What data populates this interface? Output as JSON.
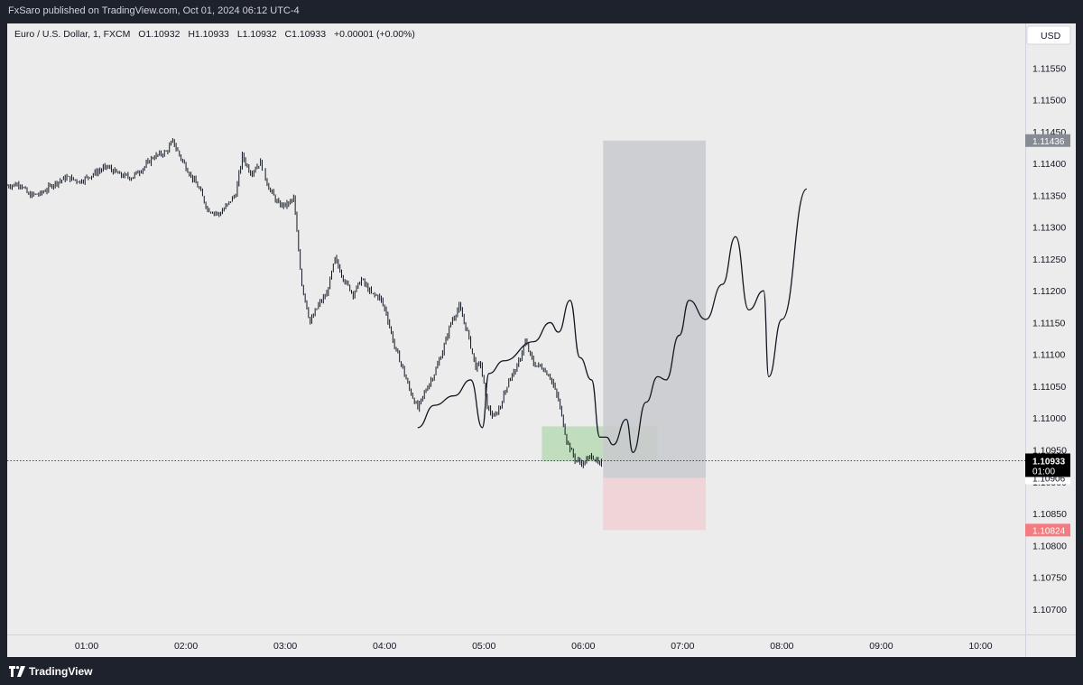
{
  "publish_line": "FxSaro published on TradingView.com, Oct 01, 2024 06:12 UTC-4",
  "brand": "TradingView",
  "colors": {
    "background": "#ececec",
    "candle": "#131722",
    "target_zone": "#c9cacf",
    "stop_zone": "#f0d2d6",
    "entry_zone": "#b9dbb5",
    "target_label": "#878b94",
    "stop_label": "#f47c80"
  },
  "chart_data": {
    "type": "line",
    "symbol": "Euro / U.S. Dollar, 1, FXCM",
    "legend": {
      "open": "O1.10932",
      "high": "H1.10933",
      "low": "L1.10932",
      "close": "C1.10933",
      "change": "+0.00001 (+0.00%)"
    },
    "currency": "USD",
    "x_ticks": [
      "01:00",
      "02:00",
      "03:00",
      "04:00",
      "05:00",
      "06:00",
      "07:00",
      "08:00",
      "09:00",
      "10:00"
    ],
    "y_ticks": [
      1.1155,
      1.115,
      1.1145,
      1.114,
      1.1135,
      1.113,
      1.1125,
      1.112,
      1.1115,
      1.111,
      1.1105,
      1.11,
      1.1095,
      1.109,
      1.1085,
      1.108,
      1.1075,
      1.107
    ],
    "y_tick_labels": [
      "1.11550",
      "1.11500",
      "1.11450",
      "1.11400",
      "1.11350",
      "1.11300",
      "1.11250",
      "1.11200",
      "1.11150",
      "1.11100",
      "1.11050",
      "1.11000",
      "1.10950",
      "1.10900",
      "1.10850",
      "1.10800",
      "1.10750",
      "1.10700"
    ],
    "ylim": [
      1.1066,
      1.1162
    ],
    "xlim": [
      "00:12",
      "10:27"
    ],
    "price_series": [
      [
        "00:12",
        1.11365
      ],
      [
        "00:20",
        1.11368
      ],
      [
        "00:25",
        1.1135
      ],
      [
        "00:32",
        1.11352
      ],
      [
        "00:40",
        1.11368
      ],
      [
        "00:48",
        1.11378
      ],
      [
        "00:56",
        1.11372
      ],
      [
        "01:05",
        1.11385
      ],
      [
        "01:12",
        1.11395
      ],
      [
        "01:20",
        1.11382
      ],
      [
        "01:27",
        1.11378
      ],
      [
        "01:35",
        1.11395
      ],
      [
        "01:40",
        1.1141
      ],
      [
        "01:48",
        1.11418
      ],
      [
        "01:52",
        1.11435
      ],
      [
        "01:57",
        1.11408
      ],
      [
        "02:02",
        1.11385
      ],
      [
        "02:08",
        1.1136
      ],
      [
        "02:13",
        1.11328
      ],
      [
        "02:20",
        1.1132
      ],
      [
        "02:25",
        1.11335
      ],
      [
        "02:30",
        1.11352
      ],
      [
        "02:34",
        1.11412
      ],
      [
        "02:39",
        1.11385
      ],
      [
        "02:45",
        1.11402
      ],
      [
        "02:50",
        1.11362
      ],
      [
        "02:56",
        1.11335
      ],
      [
        "03:01",
        1.11335
      ],
      [
        "03:05",
        1.11345
      ],
      [
        "03:10",
        1.1121
      ],
      [
        "03:15",
        1.1115
      ],
      [
        "03:20",
        1.11178
      ],
      [
        "03:25",
        1.11195
      ],
      [
        "03:30",
        1.1125
      ],
      [
        "03:36",
        1.11215
      ],
      [
        "03:41",
        1.11195
      ],
      [
        "03:46",
        1.11218
      ],
      [
        "03:52",
        1.11195
      ],
      [
        "03:57",
        1.1119
      ],
      [
        "04:01",
        1.11165
      ],
      [
        "04:06",
        1.11112
      ],
      [
        "04:10",
        1.11085
      ],
      [
        "04:15",
        1.11045
      ],
      [
        "04:20",
        1.11015
      ],
      [
        "04:25",
        1.11045
      ],
      [
        "04:30",
        1.1107
      ],
      [
        "04:35",
        1.11105
      ],
      [
        "04:40",
        1.1115
      ],
      [
        "04:45",
        1.11175
      ],
      [
        "04:50",
        1.11135
      ],
      [
        "04:55",
        1.1108
      ],
      [
        "04:58",
        1.11085
      ],
      [
        "05:02",
        1.11018
      ],
      [
        "05:06",
        1.11
      ],
      [
        "05:10",
        1.1102
      ],
      [
        "05:15",
        1.1106
      ],
      [
        "05:20",
        1.1108
      ],
      [
        "05:25",
        1.1112
      ],
      [
        "05:30",
        1.11085
      ],
      [
        "05:35",
        1.1108
      ],
      [
        "05:40",
        1.11065
      ],
      [
        "05:45",
        1.11028
      ],
      [
        "05:50",
        1.10965
      ],
      [
        "05:55",
        1.10935
      ],
      [
        "06:00",
        1.10928
      ],
      [
        "06:05",
        1.10942
      ],
      [
        "06:10",
        1.10925
      ],
      [
        "06:12",
        1.10933
      ]
    ],
    "drawn_projection_path": [
      [
        "04:20",
        1.10985
      ],
      [
        "04:30",
        1.1102
      ],
      [
        "04:42",
        1.11035
      ],
      [
        "04:52",
        1.1106
      ],
      [
        "04:59",
        1.10985
      ],
      [
        "05:03",
        1.1107
      ],
      [
        "05:12",
        1.1109
      ],
      [
        "05:30",
        1.1112
      ],
      [
        "05:40",
        1.1115
      ],
      [
        "05:45",
        1.11135
      ],
      [
        "05:52",
        1.11185
      ],
      [
        "05:58",
        1.11095
      ],
      [
        "06:05",
        1.1106
      ],
      [
        "06:10",
        1.1097
      ],
      [
        "06:14",
        1.1097
      ],
      [
        "06:18",
        1.10958
      ],
      [
        "06:26",
        1.10998
      ],
      [
        "06:30",
        1.10946
      ],
      [
        "06:38",
        1.11025
      ],
      [
        "06:45",
        1.11065
      ],
      [
        "06:50",
        1.1106
      ],
      [
        "06:58",
        1.1113
      ],
      [
        "07:04",
        1.11185
      ],
      [
        "07:14",
        1.11155
      ],
      [
        "07:24",
        1.1121
      ],
      [
        "07:32",
        1.11285
      ],
      [
        "07:40",
        1.1117
      ],
      [
        "07:49",
        1.112
      ],
      [
        "07:52",
        1.11065
      ],
      [
        "08:00",
        1.11155
      ],
      [
        "08:15",
        1.1136
      ]
    ],
    "position": {
      "entry_price": 1.10906,
      "entry_label": "1.10906",
      "target_price": 1.11436,
      "target_label": "1.11436",
      "stop_price": 1.10824,
      "stop_label": "1.10824",
      "start_time": "06:12",
      "end_time": "07:14"
    },
    "entry_zone": {
      "start_time": "05:35",
      "end_time": "06:45",
      "low": 1.10932,
      "high": 1.10987
    },
    "current_price": {
      "value": 1.10933,
      "label": "1.10933",
      "countdown": "01:00"
    }
  }
}
